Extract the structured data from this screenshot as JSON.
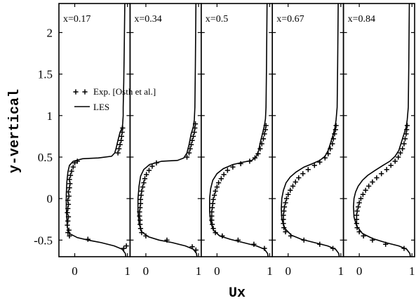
{
  "chart_data": {
    "type": "line",
    "xlabel": "Ux",
    "ylabel": "y-vertical",
    "ylim": [
      -0.7,
      2.35
    ],
    "xlim": [
      -0.3,
      1.05
    ],
    "y_ticks": [
      -0.5,
      0,
      0.5,
      1,
      1.5,
      2
    ],
    "y_tick_labels": [
      "-0.5",
      "0",
      "0.5",
      "1",
      "1.5",
      "2"
    ],
    "x_ticks": [
      0,
      1
    ],
    "x_tick_labels": [
      "0",
      "1"
    ],
    "legend": {
      "placement": "upper-left of first panel",
      "entries": [
        {
          "label": "Exp. [Osth et al.]",
          "marker": "plus"
        },
        {
          "label": "LES",
          "marker": "line"
        }
      ]
    },
    "panels": [
      {
        "label": "x=0.17",
        "les": [
          [
            0.97,
            -0.7
          ],
          [
            0.96,
            -0.66
          ],
          [
            0.9,
            -0.61
          ],
          [
            0.75,
            -0.57
          ],
          [
            0.5,
            -0.53
          ],
          [
            0.25,
            -0.5
          ],
          [
            0.05,
            -0.47
          ],
          [
            -0.1,
            -0.42
          ],
          [
            -0.14,
            -0.35
          ],
          [
            -0.15,
            -0.25
          ],
          [
            -0.16,
            -0.1
          ],
          [
            -0.16,
            0.05
          ],
          [
            -0.15,
            0.2
          ],
          [
            -0.13,
            0.32
          ],
          [
            -0.1,
            0.4
          ],
          [
            -0.03,
            0.45
          ],
          [
            0.15,
            0.48
          ],
          [
            0.45,
            0.49
          ],
          [
            0.7,
            0.51
          ],
          [
            0.76,
            0.55
          ],
          [
            0.79,
            0.62
          ],
          [
            0.82,
            0.7
          ],
          [
            0.86,
            0.8
          ],
          [
            0.9,
            0.85
          ],
          [
            0.91,
            0.9
          ],
          [
            0.92,
            1.0
          ],
          [
            0.92,
            1.1
          ],
          [
            0.93,
            1.4
          ],
          [
            0.94,
            1.8
          ],
          [
            0.95,
            2.35
          ]
        ],
        "exp": [
          [
            0.98,
            -0.57
          ],
          [
            0.93,
            -0.6
          ],
          [
            0.25,
            -0.49
          ],
          [
            -0.1,
            -0.45
          ],
          [
            -0.13,
            -0.41
          ],
          [
            -0.11,
            -0.38
          ],
          [
            -0.14,
            -0.32
          ],
          [
            -0.13,
            -0.27
          ],
          [
            -0.12,
            -0.22
          ],
          [
            -0.14,
            -0.17
          ],
          [
            -0.13,
            -0.12
          ],
          [
            -0.12,
            -0.07
          ],
          [
            -0.13,
            -0.02
          ],
          [
            -0.11,
            0.03
          ],
          [
            -0.12,
            0.08
          ],
          [
            -0.1,
            0.13
          ],
          [
            -0.09,
            0.18
          ],
          [
            -0.1,
            0.23
          ],
          [
            -0.08,
            0.28
          ],
          [
            -0.06,
            0.33
          ],
          [
            -0.03,
            0.38
          ],
          [
            0.0,
            0.43
          ],
          [
            0.05,
            0.45
          ],
          [
            0.82,
            0.55
          ],
          [
            0.84,
            0.6
          ],
          [
            0.86,
            0.65
          ],
          [
            0.88,
            0.7
          ],
          [
            0.89,
            0.75
          ],
          [
            0.9,
            0.8
          ],
          [
            0.91,
            0.85
          ]
        ]
      },
      {
        "label": "x=0.34",
        "les": [
          [
            0.97,
            -0.7
          ],
          [
            0.96,
            -0.66
          ],
          [
            0.9,
            -0.61
          ],
          [
            0.75,
            -0.57
          ],
          [
            0.5,
            -0.53
          ],
          [
            0.25,
            -0.5
          ],
          [
            0.05,
            -0.46
          ],
          [
            -0.08,
            -0.4
          ],
          [
            -0.13,
            -0.3
          ],
          [
            -0.15,
            -0.15
          ],
          [
            -0.15,
            0.0
          ],
          [
            -0.13,
            0.15
          ],
          [
            -0.1,
            0.27
          ],
          [
            -0.04,
            0.35
          ],
          [
            0.07,
            0.41
          ],
          [
            0.3,
            0.45
          ],
          [
            0.6,
            0.46
          ],
          [
            0.72,
            0.49
          ],
          [
            0.78,
            0.55
          ],
          [
            0.82,
            0.65
          ],
          [
            0.86,
            0.78
          ],
          [
            0.9,
            0.86
          ],
          [
            0.92,
            0.95
          ],
          [
            0.93,
            1.1
          ],
          [
            0.94,
            1.6
          ],
          [
            0.95,
            2.35
          ]
        ],
        "exp": [
          [
            0.95,
            -0.62
          ],
          [
            0.88,
            -0.58
          ],
          [
            0.4,
            -0.5
          ],
          [
            0.0,
            -0.45
          ],
          [
            -0.08,
            -0.41
          ],
          [
            -0.1,
            -0.36
          ],
          [
            -0.11,
            -0.31
          ],
          [
            -0.11,
            -0.26
          ],
          [
            -0.12,
            -0.21
          ],
          [
            -0.12,
            -0.16
          ],
          [
            -0.11,
            -0.11
          ],
          [
            -0.1,
            -0.06
          ],
          [
            -0.1,
            -0.01
          ],
          [
            -0.09,
            0.04
          ],
          [
            -0.08,
            0.09
          ],
          [
            -0.06,
            0.14
          ],
          [
            -0.04,
            0.19
          ],
          [
            -0.02,
            0.24
          ],
          [
            0.01,
            0.29
          ],
          [
            0.06,
            0.34
          ],
          [
            0.12,
            0.39
          ],
          [
            0.2,
            0.43
          ],
          [
            0.78,
            0.5
          ],
          [
            0.82,
            0.55
          ],
          [
            0.84,
            0.6
          ],
          [
            0.86,
            0.65
          ],
          [
            0.88,
            0.7
          ],
          [
            0.9,
            0.75
          ],
          [
            0.92,
            0.8
          ],
          [
            0.93,
            0.85
          ],
          [
            0.94,
            0.9
          ]
        ]
      },
      {
        "label": "x=0.5",
        "les": [
          [
            0.97,
            -0.7
          ],
          [
            0.96,
            -0.66
          ],
          [
            0.9,
            -0.61
          ],
          [
            0.75,
            -0.57
          ],
          [
            0.5,
            -0.53
          ],
          [
            0.25,
            -0.49
          ],
          [
            0.05,
            -0.45
          ],
          [
            -0.07,
            -0.38
          ],
          [
            -0.12,
            -0.28
          ],
          [
            -0.14,
            -0.15
          ],
          [
            -0.14,
            0.0
          ],
          [
            -0.12,
            0.12
          ],
          [
            -0.08,
            0.22
          ],
          [
            0.0,
            0.3
          ],
          [
            0.12,
            0.36
          ],
          [
            0.3,
            0.41
          ],
          [
            0.5,
            0.44
          ],
          [
            0.66,
            0.46
          ],
          [
            0.74,
            0.5
          ],
          [
            0.79,
            0.58
          ],
          [
            0.83,
            0.7
          ],
          [
            0.87,
            0.8
          ],
          [
            0.9,
            0.88
          ],
          [
            0.92,
            0.96
          ],
          [
            0.93,
            1.1
          ],
          [
            0.94,
            1.6
          ],
          [
            0.95,
            2.35
          ]
        ],
        "exp": [
          [
            0.9,
            -0.6
          ],
          [
            0.7,
            -0.55
          ],
          [
            0.4,
            -0.5
          ],
          [
            0.1,
            -0.45
          ],
          [
            -0.03,
            -0.41
          ],
          [
            -0.07,
            -0.36
          ],
          [
            -0.09,
            -0.31
          ],
          [
            -0.1,
            -0.26
          ],
          [
            -0.1,
            -0.21
          ],
          [
            -0.1,
            -0.16
          ],
          [
            -0.09,
            -0.11
          ],
          [
            -0.08,
            -0.06
          ],
          [
            -0.07,
            -0.01
          ],
          [
            -0.05,
            0.04
          ],
          [
            -0.03,
            0.09
          ],
          [
            0.0,
            0.14
          ],
          [
            0.03,
            0.19
          ],
          [
            0.08,
            0.24
          ],
          [
            0.13,
            0.29
          ],
          [
            0.2,
            0.34
          ],
          [
            0.3,
            0.38
          ],
          [
            0.45,
            0.42
          ],
          [
            0.62,
            0.45
          ],
          [
            0.72,
            0.49
          ],
          [
            0.78,
            0.54
          ],
          [
            0.82,
            0.6
          ],
          [
            0.85,
            0.66
          ],
          [
            0.88,
            0.72
          ],
          [
            0.9,
            0.78
          ],
          [
            0.92,
            0.83
          ],
          [
            0.93,
            0.88
          ]
        ]
      },
      {
        "label": "x=0.67",
        "les": [
          [
            0.97,
            -0.7
          ],
          [
            0.96,
            -0.66
          ],
          [
            0.9,
            -0.61
          ],
          [
            0.75,
            -0.57
          ],
          [
            0.5,
            -0.53
          ],
          [
            0.25,
            -0.49
          ],
          [
            0.06,
            -0.44
          ],
          [
            -0.06,
            -0.36
          ],
          [
            -0.12,
            -0.25
          ],
          [
            -0.13,
            -0.12
          ],
          [
            -0.12,
            0.0
          ],
          [
            -0.09,
            0.1
          ],
          [
            -0.04,
            0.19
          ],
          [
            0.04,
            0.26
          ],
          [
            0.15,
            0.32
          ],
          [
            0.3,
            0.38
          ],
          [
            0.46,
            0.42
          ],
          [
            0.6,
            0.46
          ],
          [
            0.7,
            0.51
          ],
          [
            0.76,
            0.58
          ],
          [
            0.81,
            0.68
          ],
          [
            0.86,
            0.78
          ],
          [
            0.89,
            0.86
          ],
          [
            0.91,
            0.95
          ],
          [
            0.93,
            1.1
          ],
          [
            0.94,
            1.6
          ],
          [
            0.95,
            2.35
          ]
        ],
        "exp": [
          [
            0.85,
            -0.6
          ],
          [
            0.6,
            -0.55
          ],
          [
            0.3,
            -0.5
          ],
          [
            0.05,
            -0.45
          ],
          [
            -0.05,
            -0.4
          ],
          [
            -0.08,
            -0.35
          ],
          [
            -0.09,
            -0.3
          ],
          [
            -0.09,
            -0.25
          ],
          [
            -0.09,
            -0.2
          ],
          [
            -0.08,
            -0.15
          ],
          [
            -0.07,
            -0.1
          ],
          [
            -0.05,
            -0.05
          ],
          [
            -0.03,
            0.0
          ],
          [
            0.0,
            0.05
          ],
          [
            0.04,
            0.1
          ],
          [
            0.09,
            0.15
          ],
          [
            0.14,
            0.2
          ],
          [
            0.2,
            0.25
          ],
          [
            0.28,
            0.3
          ],
          [
            0.38,
            0.35
          ],
          [
            0.5,
            0.4
          ],
          [
            0.6,
            0.44
          ],
          [
            0.7,
            0.49
          ],
          [
            0.76,
            0.54
          ],
          [
            0.8,
            0.6
          ],
          [
            0.84,
            0.66
          ],
          [
            0.86,
            0.72
          ],
          [
            0.88,
            0.78
          ],
          [
            0.9,
            0.83
          ],
          [
            0.91,
            0.88
          ]
        ]
      },
      {
        "label": "x=0.84",
        "les": [
          [
            0.97,
            -0.7
          ],
          [
            0.96,
            -0.66
          ],
          [
            0.9,
            -0.61
          ],
          [
            0.75,
            -0.57
          ],
          [
            0.5,
            -0.53
          ],
          [
            0.25,
            -0.48
          ],
          [
            0.06,
            -0.42
          ],
          [
            -0.05,
            -0.33
          ],
          [
            -0.1,
            -0.22
          ],
          [
            -0.11,
            -0.1
          ],
          [
            -0.1,
            0.0
          ],
          [
            -0.07,
            0.08
          ],
          [
            -0.02,
            0.15
          ],
          [
            0.06,
            0.22
          ],
          [
            0.16,
            0.28
          ],
          [
            0.3,
            0.34
          ],
          [
            0.45,
            0.4
          ],
          [
            0.58,
            0.45
          ],
          [
            0.68,
            0.51
          ],
          [
            0.75,
            0.58
          ],
          [
            0.8,
            0.68
          ],
          [
            0.85,
            0.78
          ],
          [
            0.89,
            0.86
          ],
          [
            0.91,
            0.95
          ],
          [
            0.93,
            1.1
          ],
          [
            0.94,
            1.6
          ],
          [
            0.95,
            2.35
          ]
        ],
        "exp": [
          [
            0.85,
            -0.6
          ],
          [
            0.5,
            -0.55
          ],
          [
            0.25,
            -0.5
          ],
          [
            0.08,
            -0.45
          ],
          [
            0.0,
            -0.4
          ],
          [
            -0.04,
            -0.35
          ],
          [
            -0.05,
            -0.3
          ],
          [
            -0.05,
            -0.25
          ],
          [
            -0.05,
            -0.2
          ],
          [
            -0.04,
            -0.15
          ],
          [
            -0.02,
            -0.1
          ],
          [
            0.0,
            -0.05
          ],
          [
            0.03,
            0.0
          ],
          [
            0.07,
            0.05
          ],
          [
            0.12,
            0.1
          ],
          [
            0.18,
            0.15
          ],
          [
            0.25,
            0.2
          ],
          [
            0.33,
            0.25
          ],
          [
            0.42,
            0.3
          ],
          [
            0.52,
            0.35
          ],
          [
            0.6,
            0.4
          ],
          [
            0.68,
            0.45
          ],
          [
            0.74,
            0.5
          ],
          [
            0.78,
            0.55
          ],
          [
            0.82,
            0.6
          ],
          [
            0.85,
            0.66
          ],
          [
            0.87,
            0.72
          ],
          [
            0.89,
            0.78
          ],
          [
            0.9,
            0.83
          ],
          [
            0.91,
            0.88
          ]
        ]
      }
    ]
  }
}
